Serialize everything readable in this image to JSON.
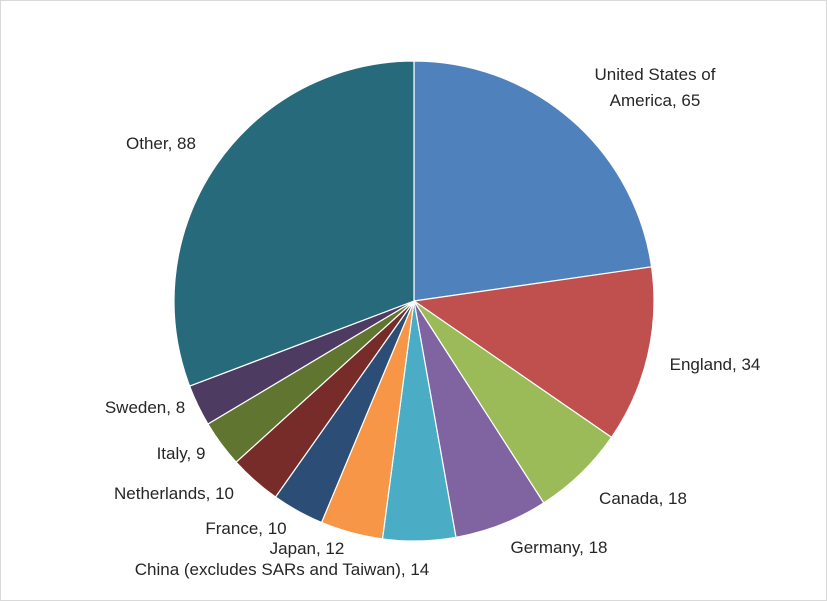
{
  "chart_data": {
    "type": "pie",
    "title": "",
    "slices": [
      {
        "label": "United States of America",
        "value": 65,
        "color": "#4F81BD",
        "text": [
          "United States of",
          "America, 65"
        ]
      },
      {
        "label": "England",
        "value": 34,
        "color": "#C0504D",
        "text": [
          "England, 34"
        ]
      },
      {
        "label": "Canada",
        "value": 18,
        "color": "#9BBB59",
        "text": [
          "Canada, 18"
        ]
      },
      {
        "label": "Germany",
        "value": 18,
        "color": "#8064A2",
        "text": [
          "Germany, 18"
        ]
      },
      {
        "label": "China (excludes SARs and Taiwan)",
        "value": 14,
        "color": "#4BACC6",
        "text": [
          "China (excludes SARs and Taiwan), 14"
        ]
      },
      {
        "label": "Japan",
        "value": 12,
        "color": "#F79646",
        "text": [
          "Japan, 12"
        ]
      },
      {
        "label": "France",
        "value": 10,
        "color": "#2C4D75",
        "text": [
          "France, 10"
        ]
      },
      {
        "label": "Netherlands",
        "value": 10,
        "color": "#772C2A",
        "text": [
          "Netherlands, 10"
        ]
      },
      {
        "label": "Italy",
        "value": 9,
        "color": "#5F7530",
        "text": [
          "Italy, 9"
        ]
      },
      {
        "label": "Sweden",
        "value": 8,
        "color": "#4D3B62",
        "text": [
          "Sweden, 8"
        ]
      },
      {
        "label": "Other",
        "value": 88,
        "color": "#276A7C",
        "text": [
          "Other, 88"
        ]
      }
    ],
    "start_angle": "12 o'clock",
    "direction": "clockwise",
    "legend": "none",
    "data_labels": "outside, category and value"
  }
}
